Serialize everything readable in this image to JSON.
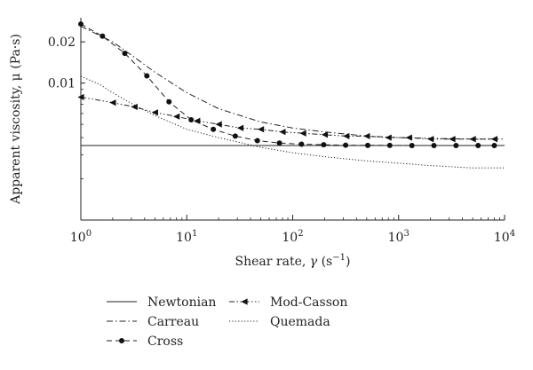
{
  "chart_data": {
    "type": "line",
    "x_scale": "log",
    "y_scale": "log",
    "xlim": [
      1,
      10000
    ],
    "ylim": [
      0.001,
      0.03
    ],
    "xlabel": {
      "prefix": "Shear rate, ",
      "symbol": "γ",
      "unit_open": " (s",
      "unit_sup": "−1",
      "unit_close": ")"
    },
    "ylabel": "Apparent viscosity, μ (Pa·s)",
    "x_ticks": [
      {
        "value": 1,
        "base": "10",
        "exp": "0"
      },
      {
        "value": 10,
        "base": "10",
        "exp": "1"
      },
      {
        "value": 100,
        "base": "10",
        "exp": "2"
      },
      {
        "value": 1000,
        "base": "10",
        "exp": "3"
      },
      {
        "value": 10000,
        "base": "10",
        "exp": "4"
      }
    ],
    "y_ticks": [
      {
        "value": 0.01,
        "label": "0.01"
      },
      {
        "value": 0.02,
        "label": "0.02"
      }
    ],
    "grid": false,
    "legend_position": "bottom-left",
    "series": [
      {
        "name": "Newtonian",
        "style": "solid",
        "marker": "none",
        "x": [
          1,
          10000
        ],
        "y": [
          0.0035,
          0.0035
        ]
      },
      {
        "name": "Carreau",
        "style": "dashdot",
        "marker": "none",
        "x": [
          1,
          2,
          3,
          5,
          10,
          20,
          50,
          100,
          200,
          500,
          1000,
          2000,
          5000,
          10000
        ],
        "y": [
          0.026,
          0.02,
          0.016,
          0.012,
          0.0085,
          0.0065,
          0.0052,
          0.0047,
          0.0044,
          0.0041,
          0.004,
          0.00395,
          0.0039,
          0.0039
        ]
      },
      {
        "name": "Cross",
        "style": "dashed",
        "marker": "circle",
        "x": [
          1,
          1.6,
          2.6,
          4.2,
          6.8,
          11,
          17.8,
          28.7,
          46.4,
          75,
          121,
          196,
          316,
          511,
          825,
          1334,
          2154,
          3481,
          5623,
          8000
        ],
        "y": [
          0.027,
          0.022,
          0.0165,
          0.0113,
          0.0073,
          0.0054,
          0.0046,
          0.0041,
          0.0038,
          0.00365,
          0.00358,
          0.00355,
          0.00352,
          0.00351,
          0.00351,
          0.0035,
          0.0035,
          0.0035,
          0.0035,
          0.0035
        ]
      },
      {
        "name": "Mod-Casson",
        "style": "dashdotdot",
        "marker": "triangle-left",
        "x": [
          1,
          2,
          3.2,
          5,
          8,
          12.5,
          20,
          32,
          50,
          80,
          125,
          200,
          320,
          500,
          800,
          1250,
          2000,
          3200,
          5000,
          8000
        ],
        "y": [
          0.0079,
          0.0072,
          0.0067,
          0.0061,
          0.0057,
          0.0053,
          0.005,
          0.0047,
          0.0046,
          0.0044,
          0.0043,
          0.0042,
          0.0041,
          0.0041,
          0.004,
          0.004,
          0.0039,
          0.0039,
          0.0039,
          0.0039
        ]
      },
      {
        "name": "Quemada",
        "style": "dotted",
        "marker": "none",
        "x": [
          1,
          1.5,
          2,
          3,
          5,
          10,
          20,
          50,
          100,
          200,
          500,
          1000,
          2000,
          5000,
          10000
        ],
        "y": [
          0.0112,
          0.0098,
          0.0085,
          0.0071,
          0.0058,
          0.0046,
          0.004,
          0.0034,
          0.0031,
          0.0029,
          0.0027,
          0.0026,
          0.0025,
          0.0024,
          0.0024
        ]
      }
    ]
  }
}
